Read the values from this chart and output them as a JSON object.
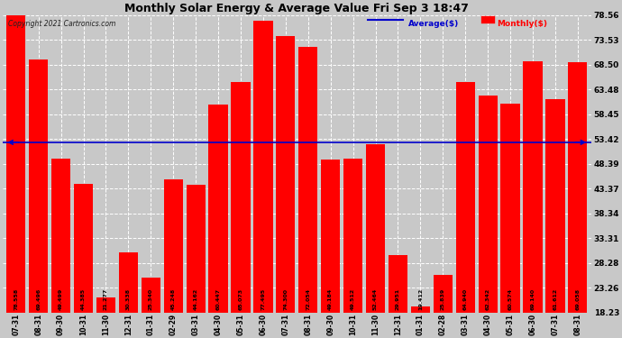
{
  "title": "Monthly Solar Energy & Average Value Fri Sep 3 18:47",
  "copyright": "Copyright 2021 Cartronics.com",
  "legend_average": "Average($)",
  "legend_monthly": "Monthly($)",
  "categories": [
    "07-31",
    "08-31",
    "09-30",
    "10-31",
    "11-30",
    "12-31",
    "01-31",
    "02-29",
    "03-31",
    "04-30",
    "05-31",
    "06-30",
    "07-31",
    "08-31",
    "09-30",
    "10-31",
    "11-30",
    "12-31",
    "01-31",
    "02-28",
    "03-31",
    "04-30",
    "05-31",
    "06-30",
    "07-31",
    "08-31"
  ],
  "values": [
    78.558,
    69.496,
    49.499,
    44.385,
    21.277,
    30.338,
    25.34,
    45.248,
    44.162,
    60.447,
    65.073,
    77.495,
    74.3,
    72.054,
    49.184,
    49.512,
    52.464,
    29.951,
    19.412,
    25.839,
    64.94,
    62.342,
    60.574,
    69.14,
    61.612,
    69.058
  ],
  "average_value": 52.758,
  "ylim_min": 18.23,
  "ylim_max": 78.56,
  "yticks": [
    18.23,
    23.26,
    28.28,
    33.31,
    38.34,
    43.37,
    48.39,
    53.42,
    58.45,
    63.48,
    68.5,
    73.53,
    78.56
  ],
  "bar_color": "#ff0000",
  "average_line_color": "#0000cc",
  "background_color": "#c8c8c8",
  "plot_bg_color": "#c8c8c8",
  "title_color": "#000000",
  "bar_label_color": "#000000",
  "grid_color": "#ffffff",
  "avg_label_color": "#ff0000",
  "figwidth": 6.9,
  "figheight": 3.75,
  "dpi": 100
}
